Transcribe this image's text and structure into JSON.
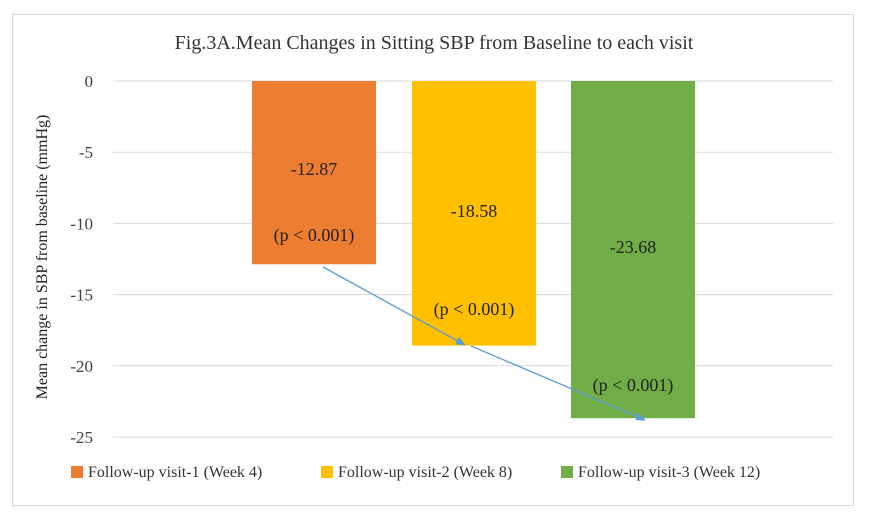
{
  "chart_data": {
    "type": "bar",
    "title": "Fig.3A.Mean Changes in Sitting SBP from Baseline to each visit",
    "xlabel": "",
    "ylabel": "Mean change in SBP from baseline (mmHg)",
    "ylim": [
      -25,
      0
    ],
    "yticks": [
      0,
      -5,
      -10,
      -15,
      -20,
      -25
    ],
    "grid": true,
    "legend_position": "bottom",
    "series": [
      {
        "name": "Follow-up visit-1 (Week 4)",
        "value": -12.87,
        "value_label": "-12.87",
        "p_label": "(p < 0.001)",
        "color": "#ED7D31"
      },
      {
        "name": "Follow-up visit-2 (Week 8)",
        "value": -18.58,
        "value_label": "-18.58",
        "p_label": "(p < 0.001)",
        "color": "#FFC000"
      },
      {
        "name": "Follow-up visit-3 (Week 12)",
        "value": -23.68,
        "value_label": "-23.68",
        "p_label": "(p < 0.001)",
        "color": "#70AD47"
      }
    ],
    "trend_arrow_color": "#5B9BD5"
  }
}
